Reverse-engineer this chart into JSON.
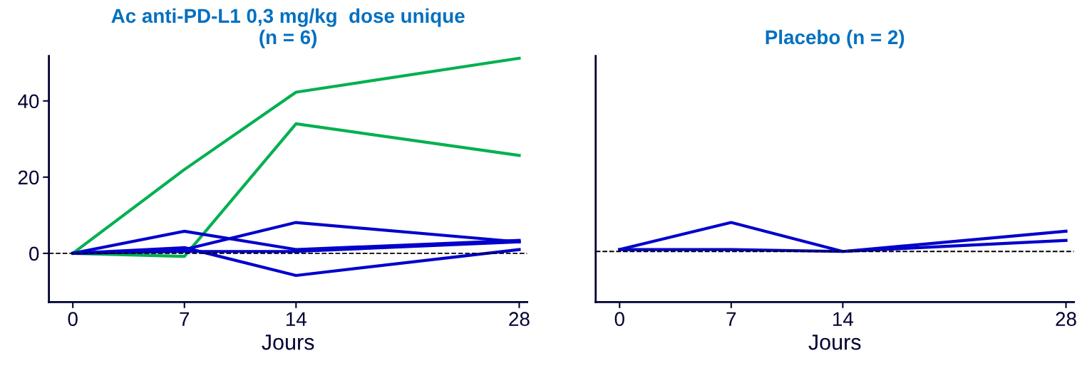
{
  "chart_data": [
    {
      "type": "line",
      "title": "Ac anti-PD-L1 0,3 mg/kg  dose unique\n(n = 6)",
      "xlabel": "Jours",
      "x": [
        0,
        7,
        14,
        28
      ],
      "xlim": [
        -1.5,
        28.5
      ],
      "ylim": [
        -12.8,
        51.8
      ],
      "xticks": [
        0,
        7,
        14,
        28
      ],
      "yticks": [
        0,
        20,
        40
      ],
      "grid": false,
      "marker": "none",
      "line_style": "solid",
      "ref_lines": [
        {
          "axis": "y",
          "value": 0,
          "color": "#000000",
          "line_style": "dashed"
        }
      ],
      "series": [
        {
          "color": "#00b050",
          "values": [
            0,
            22,
            42.3,
            51.2
          ]
        },
        {
          "color": "#00b050",
          "values": [
            0,
            -0.8,
            34,
            25.7
          ]
        },
        {
          "color": "#0000cc",
          "values": [
            0,
            5.8,
            1,
            3.4
          ]
        },
        {
          "color": "#0000cc",
          "values": [
            0,
            1,
            8.1,
            3
          ]
        },
        {
          "color": "#0000cc",
          "values": [
            0,
            1.5,
            -5.8,
            1
          ]
        },
        {
          "color": "#0000cc",
          "values": [
            0,
            0.5,
            0.5,
            3
          ]
        }
      ]
    },
    {
      "type": "line",
      "title": "Placebo (n = 2)",
      "xlabel": "Jours",
      "x": [
        0,
        7,
        14,
        28
      ],
      "xlim": [
        -1.5,
        28.5
      ],
      "ylim": [
        -12.8,
        51.8
      ],
      "xticks": [
        0,
        7,
        14,
        28
      ],
      "tick_labels": "x",
      "grid": false,
      "marker": "none",
      "line_style": "solid",
      "ref_lines": [
        {
          "axis": "y",
          "value": 0.5,
          "color": "#000000",
          "line_style": "dashed"
        }
      ],
      "series": [
        {
          "color": "#0000cc",
          "values": [
            1,
            8.1,
            0.5,
            5.8
          ]
        },
        {
          "color": "#0000cc",
          "values": [
            1,
            1,
            0.5,
            3.4
          ]
        }
      ]
    }
  ]
}
